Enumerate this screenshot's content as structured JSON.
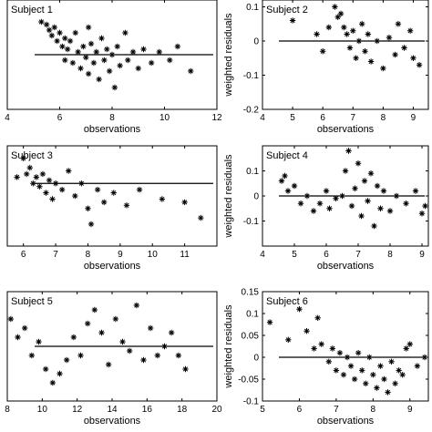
{
  "chart_data": [
    {
      "type": "scatter",
      "title": "Subject 1",
      "xlabel": "observations",
      "ylabel": "",
      "xlim": [
        4,
        12
      ],
      "ylim": [
        -0.2,
        0.2
      ],
      "xticks": [
        4,
        6,
        8,
        10,
        12
      ],
      "yticks": [],
      "yticks_labels": [],
      "ref_line": 0,
      "points": [
        [
          5.3,
          0.12
        ],
        [
          5.5,
          0.11
        ],
        [
          5.6,
          0.09
        ],
        [
          5.7,
          0.07
        ],
        [
          5.8,
          0.1
        ],
        [
          5.9,
          0.05
        ],
        [
          6.0,
          0.08
        ],
        [
          6.1,
          0.03
        ],
        [
          6.2,
          0.06
        ],
        [
          6.2,
          -0.02
        ],
        [
          6.3,
          0.02
        ],
        [
          6.4,
          0.05
        ],
        [
          6.5,
          -0.03
        ],
        [
          6.6,
          0.08
        ],
        [
          6.7,
          0.01
        ],
        [
          6.8,
          -0.05
        ],
        [
          6.9,
          0.03
        ],
        [
          7.0,
          -0.01
        ],
        [
          7.1,
          0.1
        ],
        [
          7.1,
          -0.07
        ],
        [
          7.2,
          0.04
        ],
        [
          7.3,
          -0.03
        ],
        [
          7.4,
          0.01
        ],
        [
          7.5,
          -0.09
        ],
        [
          7.6,
          0.06
        ],
        [
          7.7,
          -0.02
        ],
        [
          7.8,
          0.02
        ],
        [
          7.9,
          -0.06
        ],
        [
          8.0,
          0.0
        ],
        [
          8.1,
          -0.12
        ],
        [
          8.2,
          0.03
        ],
        [
          8.3,
          -0.04
        ],
        [
          8.5,
          0.08
        ],
        [
          8.6,
          -0.02
        ],
        [
          8.8,
          0.01
        ],
        [
          9.0,
          -0.05
        ],
        [
          9.2,
          0.02
        ],
        [
          9.5,
          -0.03
        ],
        [
          9.8,
          0.01
        ],
        [
          10.2,
          -0.02
        ],
        [
          10.5,
          0.03
        ],
        [
          11.0,
          -0.06
        ]
      ]
    },
    {
      "type": "scatter",
      "title": "Subject 2",
      "xlabel": "observations",
      "ylabel": "weighted residuals",
      "xlim": [
        4,
        9.5
      ],
      "ylim": [
        -0.2,
        0.12
      ],
      "xticks": [
        4,
        5,
        6,
        7,
        8,
        9
      ],
      "yticks": [
        0.1,
        0,
        -0.1,
        -0.2
      ],
      "yticks_labels": [
        "0.1",
        "0",
        "-0.1",
        "-0.2"
      ],
      "ref_line": 0,
      "points": [
        [
          5.0,
          0.06
        ],
        [
          5.8,
          0.02
        ],
        [
          6.0,
          -0.03
        ],
        [
          6.2,
          0.04
        ],
        [
          6.4,
          0.1
        ],
        [
          6.5,
          0.07
        ],
        [
          6.6,
          0.08
        ],
        [
          6.7,
          0.04
        ],
        [
          6.8,
          0.02
        ],
        [
          6.9,
          -0.02
        ],
        [
          7.0,
          0.03
        ],
        [
          7.1,
          -0.05
        ],
        [
          7.2,
          0.0
        ],
        [
          7.3,
          0.05
        ],
        [
          7.4,
          -0.03
        ],
        [
          7.5,
          0.02
        ],
        [
          7.6,
          -0.06
        ],
        [
          7.8,
          0.0
        ],
        [
          8.0,
          -0.08
        ],
        [
          8.2,
          0.01
        ],
        [
          8.4,
          -0.04
        ],
        [
          8.5,
          0.05
        ],
        [
          8.7,
          -0.02
        ],
        [
          8.9,
          0.03
        ],
        [
          9.0,
          -0.05
        ],
        [
          9.2,
          -0.07
        ]
      ]
    },
    {
      "type": "scatter",
      "title": "Subject 3",
      "xlabel": "observations",
      "ylabel": "",
      "xlim": [
        5.5,
        12
      ],
      "ylim": [
        -0.2,
        0.12
      ],
      "xticks": [
        6,
        7,
        8,
        9,
        10,
        11
      ],
      "yticks": [],
      "yticks_labels": [],
      "ref_line": 0,
      "points": [
        [
          5.8,
          0.02
        ],
        [
          6.0,
          0.08
        ],
        [
          6.1,
          0.03
        ],
        [
          6.2,
          0.05
        ],
        [
          6.3,
          0.0
        ],
        [
          6.4,
          0.02
        ],
        [
          6.5,
          -0.01
        ],
        [
          6.6,
          0.03
        ],
        [
          6.7,
          -0.03
        ],
        [
          6.8,
          0.01
        ],
        [
          6.9,
          -0.05
        ],
        [
          7.0,
          0.0
        ],
        [
          7.2,
          -0.02
        ],
        [
          7.4,
          0.04
        ],
        [
          7.6,
          -0.04
        ],
        [
          7.8,
          0.0
        ],
        [
          8.0,
          -0.08
        ],
        [
          8.1,
          -0.13
        ],
        [
          8.3,
          -0.02
        ],
        [
          8.5,
          -0.06
        ],
        [
          8.8,
          -0.03
        ],
        [
          9.2,
          -0.07
        ],
        [
          9.6,
          -0.02
        ],
        [
          10.3,
          -0.05
        ],
        [
          11.0,
          -0.06
        ],
        [
          11.5,
          -0.11
        ]
      ]
    },
    {
      "type": "scatter",
      "title": "Subject 4",
      "xlabel": "observations",
      "ylabel": "weighted residuals",
      "xlim": [
        4,
        9.2
      ],
      "ylim": [
        -0.2,
        0.2
      ],
      "xticks": [
        4,
        5,
        6,
        7,
        8,
        9
      ],
      "yticks": [
        0.1,
        0,
        -0.1
      ],
      "yticks_labels": [
        "0.1",
        "0",
        "-0.1"
      ],
      "ref_line": 0,
      "points": [
        [
          4.6,
          0.06
        ],
        [
          4.7,
          0.08
        ],
        [
          4.8,
          0.02
        ],
        [
          5.0,
          0.04
        ],
        [
          5.2,
          -0.03
        ],
        [
          5.4,
          0.0
        ],
        [
          5.6,
          -0.06
        ],
        [
          5.8,
          -0.03
        ],
        [
          6.0,
          0.02
        ],
        [
          6.1,
          -0.05
        ],
        [
          6.3,
          -0.01
        ],
        [
          6.5,
          0.0
        ],
        [
          6.6,
          0.1
        ],
        [
          6.7,
          0.18
        ],
        [
          6.8,
          -0.04
        ],
        [
          6.9,
          0.03
        ],
        [
          7.0,
          0.13
        ],
        [
          7.1,
          -0.08
        ],
        [
          7.2,
          0.06
        ],
        [
          7.3,
          -0.02
        ],
        [
          7.4,
          0.09
        ],
        [
          7.5,
          -0.12
        ],
        [
          7.6,
          0.04
        ],
        [
          7.7,
          -0.05
        ],
        [
          7.8,
          0.02
        ],
        [
          8.0,
          -0.06
        ],
        [
          8.2,
          0.0
        ],
        [
          8.5,
          -0.03
        ],
        [
          8.8,
          0.02
        ],
        [
          9.0,
          -0.07
        ],
        [
          9.1,
          -0.04
        ]
      ]
    },
    {
      "type": "scatter",
      "title": "Subject 5",
      "xlabel": "observations",
      "ylabel": "",
      "xlim": [
        8,
        20
      ],
      "ylim": [
        -0.12,
        0.12
      ],
      "xticks": [
        8,
        10,
        12,
        14,
        16,
        18,
        20
      ],
      "yticks": [],
      "yticks_labels": [],
      "ref_line": 0,
      "points": [
        [
          8.2,
          0.06
        ],
        [
          8.6,
          0.02
        ],
        [
          9.0,
          0.04
        ],
        [
          9.4,
          -0.02
        ],
        [
          9.8,
          0.01
        ],
        [
          10.2,
          -0.05
        ],
        [
          10.6,
          -0.08
        ],
        [
          11.0,
          -0.06
        ],
        [
          11.4,
          -0.03
        ],
        [
          11.8,
          0.02
        ],
        [
          12.2,
          -0.02
        ],
        [
          12.6,
          0.05
        ],
        [
          13.0,
          0.08
        ],
        [
          13.4,
          0.03
        ],
        [
          13.8,
          -0.04
        ],
        [
          14.2,
          0.06
        ],
        [
          14.6,
          0.01
        ],
        [
          15.0,
          -0.01
        ],
        [
          15.4,
          0.09
        ],
        [
          15.8,
          -0.03
        ],
        [
          16.2,
          0.04
        ],
        [
          16.6,
          -0.02
        ],
        [
          17.0,
          0.0
        ],
        [
          17.4,
          0.03
        ],
        [
          17.8,
          -0.02
        ],
        [
          18.2,
          -0.05
        ]
      ]
    },
    {
      "type": "scatter",
      "title": "Subject 6",
      "xlabel": "observations",
      "ylabel": "weighted residuals",
      "xlim": [
        5,
        9.5
      ],
      "ylim": [
        -0.1,
        0.15
      ],
      "xticks": [
        5,
        6,
        7,
        8,
        9
      ],
      "yticks": [
        0.15,
        0.1,
        0.05,
        0,
        -0.05,
        -0.1
      ],
      "yticks_labels": [
        "0.15",
        "0.1",
        "0.05",
        "0",
        "-0.05",
        "-0.1"
      ],
      "ref_line": 0,
      "points": [
        [
          5.2,
          0.08
        ],
        [
          5.7,
          0.04
        ],
        [
          6.0,
          0.11
        ],
        [
          6.2,
          0.06
        ],
        [
          6.4,
          0.02
        ],
        [
          6.5,
          0.09
        ],
        [
          6.6,
          0.03
        ],
        [
          6.8,
          -0.01
        ],
        [
          6.9,
          0.02
        ],
        [
          7.0,
          -0.03
        ],
        [
          7.1,
          0.01
        ],
        [
          7.2,
          -0.04
        ],
        [
          7.3,
          0.0
        ],
        [
          7.4,
          -0.02
        ],
        [
          7.5,
          -0.05
        ],
        [
          7.6,
          0.01
        ],
        [
          7.7,
          -0.03
        ],
        [
          7.8,
          -0.06
        ],
        [
          7.9,
          0.0
        ],
        [
          8.0,
          -0.04
        ],
        [
          8.1,
          -0.07
        ],
        [
          8.2,
          -0.02
        ],
        [
          8.3,
          -0.05
        ],
        [
          8.4,
          -0.08
        ],
        [
          8.5,
          -0.01
        ],
        [
          8.6,
          -0.06
        ],
        [
          8.7,
          -0.03
        ],
        [
          8.8,
          -0.04
        ],
        [
          8.9,
          0.02
        ],
        [
          9.0,
          0.03
        ],
        [
          9.2,
          -0.02
        ],
        [
          9.4,
          0.0
        ]
      ]
    }
  ]
}
